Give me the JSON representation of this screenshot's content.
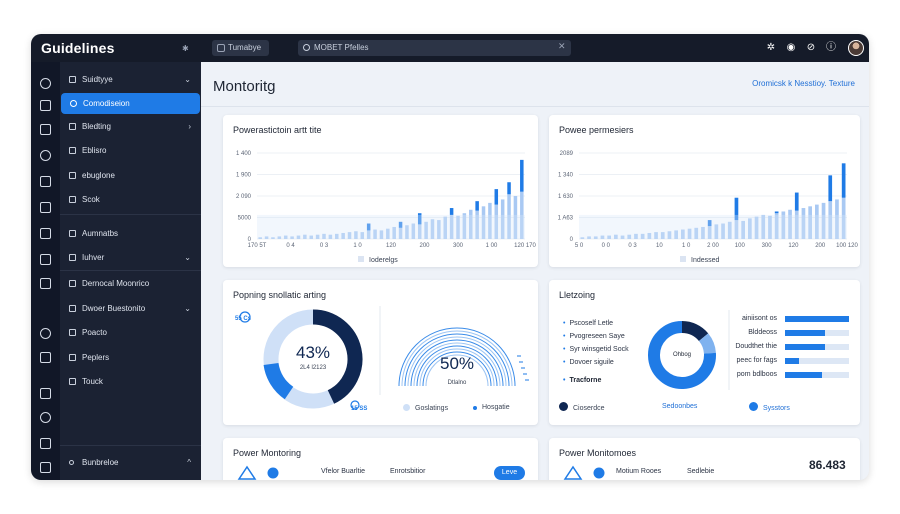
{
  "app": {
    "title": "Guidelines",
    "tab_label": "Tumabye",
    "search_value": "MOBET Pfelles"
  },
  "topbar_icons": [
    "gear-icon",
    "help-icon",
    "settings-icon",
    "info-icon"
  ],
  "sidebar": {
    "items": [
      {
        "label": "Suidtyye",
        "icon": "grid-icon",
        "chevron": "⌄"
      },
      {
        "label": "Comodiseion",
        "icon": "circle-icon",
        "active": true
      },
      {
        "label": "Bledting",
        "icon": "flag-icon",
        "chevron": "›"
      },
      {
        "label": "Eblisro",
        "icon": "doc-icon"
      },
      {
        "label": "ebuglone",
        "icon": "play-icon"
      },
      {
        "label": "Scok",
        "icon": "square-icon"
      },
      {
        "label": "Aumnatbs",
        "icon": "doc-icon"
      },
      {
        "label": "Iuhver",
        "icon": "lock-icon",
        "chevron": "⌄"
      },
      {
        "label": "Dernocal Moonrico",
        "icon": "chart-icon"
      },
      {
        "label": "Dwoer Buestonito",
        "icon": "pin-icon",
        "chevron": "⌄"
      },
      {
        "label": "Poacto",
        "icon": "edit-icon"
      },
      {
        "label": "Peplers",
        "icon": "pencil-icon"
      },
      {
        "label": "Touck",
        "icon": "square-icon"
      }
    ],
    "footer_label": "Bunbreloe",
    "footer_chevron": "^"
  },
  "header": {
    "title": "Montoritg",
    "link": "Oromicsk k Nesstioy.  Texture"
  },
  "colors": {
    "accent": "#1f7be6",
    "dark_navy": "#0f2752",
    "light_bar": "#a9c9f3",
    "track": "#dde7f5"
  },
  "cards": {
    "left_chart": {
      "title": "Powerastictoin artt tite",
      "legend": "Ioderelgs"
    },
    "right_chart": {
      "title": "Powee permesiers",
      "legend": "Indessed"
    },
    "donut_card": {
      "title": "Popning snollatic arting",
      "badge_top": "55 Cs",
      "badge_bottom": "15 SS",
      "donut_value": "43%",
      "donut_sub": "2L4 l2123",
      "gauge_value": "50%",
      "gauge_sub": "Dtlalno",
      "legend": [
        "Goslatings",
        "Hosgatie"
      ]
    },
    "listing_card": {
      "title": "Lletzoing",
      "bullets": [
        "Pscoself Letle",
        "Pvogreseen Saye",
        "Syr winsgetid Sock",
        "Dovoer siguile"
      ],
      "footer_bullet": "Tracforne",
      "donut_label": "Ohbog",
      "legend": [
        "Cioserdce",
        "Sedoonbes",
        "Sysstors"
      ],
      "hbars": [
        {
          "label": "ainiisont os",
          "value": 1.0
        },
        {
          "label": "Blddeoss",
          "value": 0.62
        },
        {
          "label": "Doudthet thie",
          "value": 0.62
        },
        {
          "label": "peec for fags",
          "value": 0.22
        },
        {
          "label": "pom bdlboos",
          "value": 0.58
        }
      ]
    },
    "power_left": {
      "title": "Power Montoring",
      "text1": "Vfelor Buarltie",
      "text2": "Enrotsbitior",
      "button": "Leve"
    },
    "power_right": {
      "title": "Power Monitomoes",
      "text1": "Motium Rooes",
      "text2": "Sedlebie",
      "value": "86.483"
    }
  },
  "chart_data": [
    {
      "type": "bar",
      "title": "Powerastictoin artt tite",
      "ytick_labels": [
        "1 400",
        "1 900",
        "2 090",
        "5000",
        "0"
      ],
      "xtick_labels": [
        "170 5T",
        "0 4",
        "0 3",
        "1 0",
        "120",
        "200",
        "300",
        "1 00",
        "120 170"
      ],
      "legend": [
        "Ioderelgs"
      ],
      "series": [
        {
          "values": [
            2,
            3,
            2,
            3,
            4,
            3,
            4,
            5,
            4,
            5,
            6,
            5,
            6,
            7,
            8,
            9,
            8,
            10,
            11,
            10,
            12,
            14,
            13,
            16,
            18,
            17,
            20,
            23,
            22,
            26,
            28,
            27,
            30,
            34,
            33,
            38,
            42,
            40,
            46,
            52,
            50,
            55
          ]
        },
        {
          "values": [
            0,
            0,
            0,
            0,
            0,
            0,
            0,
            0,
            0,
            0,
            0,
            0,
            0,
            0,
            0,
            0,
            0,
            18,
            0,
            0,
            0,
            0,
            20,
            0,
            0,
            30,
            0,
            0,
            0,
            0,
            36,
            0,
            0,
            0,
            44,
            0,
            0,
            58,
            0,
            66,
            0,
            92
          ]
        }
      ]
    },
    {
      "type": "bar",
      "title": "Powee permesiers",
      "ytick_labels": [
        "2089",
        "1 340",
        "1 630",
        "1 A63",
        "0"
      ],
      "xtick_labels": [
        "5 0",
        "0 0",
        "0 3",
        "10",
        "1 0",
        "2 00",
        "100",
        "300",
        "120",
        "200",
        "100 120"
      ],
      "legend": [
        "Indessed"
      ],
      "series": [
        {
          "values": [
            2,
            3,
            3,
            4,
            4,
            5,
            4,
            5,
            6,
            6,
            7,
            8,
            8,
            9,
            10,
            11,
            12,
            13,
            14,
            15,
            17,
            18,
            20,
            22,
            21,
            24,
            26,
            28,
            27,
            30,
            32,
            34,
            33,
            36,
            38,
            40,
            42,
            44,
            46,
            48
          ]
        },
        {
          "values": [
            0,
            0,
            0,
            0,
            0,
            0,
            0,
            0,
            0,
            0,
            0,
            0,
            0,
            0,
            0,
            0,
            0,
            0,
            0,
            22,
            0,
            0,
            0,
            48,
            0,
            0,
            0,
            0,
            0,
            32,
            0,
            0,
            54,
            0,
            0,
            38,
            0,
            74,
            0,
            88
          ]
        }
      ]
    },
    {
      "type": "pie",
      "title": "Popning snollatic arting",
      "values": [
        43,
        57
      ],
      "labels": [
        "43%",
        ""
      ]
    },
    {
      "type": "pie",
      "title": "Lletzoing",
      "values": [
        14,
        10,
        76
      ],
      "labels": [
        "",
        "",
        ""
      ]
    }
  ]
}
